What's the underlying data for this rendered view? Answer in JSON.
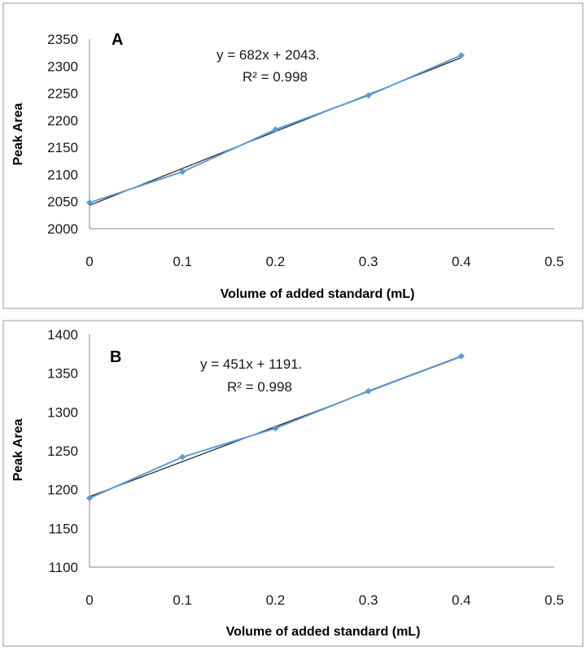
{
  "colors": {
    "series": "#5b9bd5",
    "trendline": "#1a1a1a"
  },
  "chart_data": [
    {
      "type": "line",
      "panel_label": "A",
      "xlabel": "Volume of added standard (mL)",
      "ylabel": "Peak Area",
      "xlim": [
        0,
        0.5
      ],
      "ylim": [
        2000,
        2350
      ],
      "x_ticks": [
        "0",
        "0.1",
        "0.2",
        "0.3",
        "0.4",
        "0.5"
      ],
      "y_ticks": [
        "2000",
        "2050",
        "2100",
        "2150",
        "2200",
        "2250",
        "2300",
        "2350"
      ],
      "grid": false,
      "x": [
        0,
        0.1,
        0.2,
        0.3,
        0.4
      ],
      "values": [
        2048,
        2105,
        2183,
        2246,
        2320
      ],
      "trendline": {
        "slope": 682,
        "intercept": 2043
      },
      "equation": "y = 682x + 2043.",
      "r2_label": "R² = 0.998"
    },
    {
      "type": "line",
      "panel_label": "B",
      "xlabel": "Volume of added standard (mL)",
      "ylabel": "Peak Area",
      "xlim": [
        0,
        0.5
      ],
      "ylim": [
        1100,
        1400
      ],
      "x_ticks": [
        "0",
        "0.1",
        "0.2",
        "0.3",
        "0.4",
        "0.5"
      ],
      "y_ticks": [
        "1100",
        "1150",
        "1200",
        "1250",
        "1300",
        "1350",
        "1400"
      ],
      "grid": false,
      "x": [
        0,
        0.1,
        0.2,
        0.3,
        0.4
      ],
      "values": [
        1189,
        1242,
        1279,
        1327,
        1372
      ],
      "trendline": {
        "slope": 451,
        "intercept": 1191
      },
      "equation": "y = 451x + 1191.",
      "r2_label": "R² = 0.998"
    }
  ]
}
